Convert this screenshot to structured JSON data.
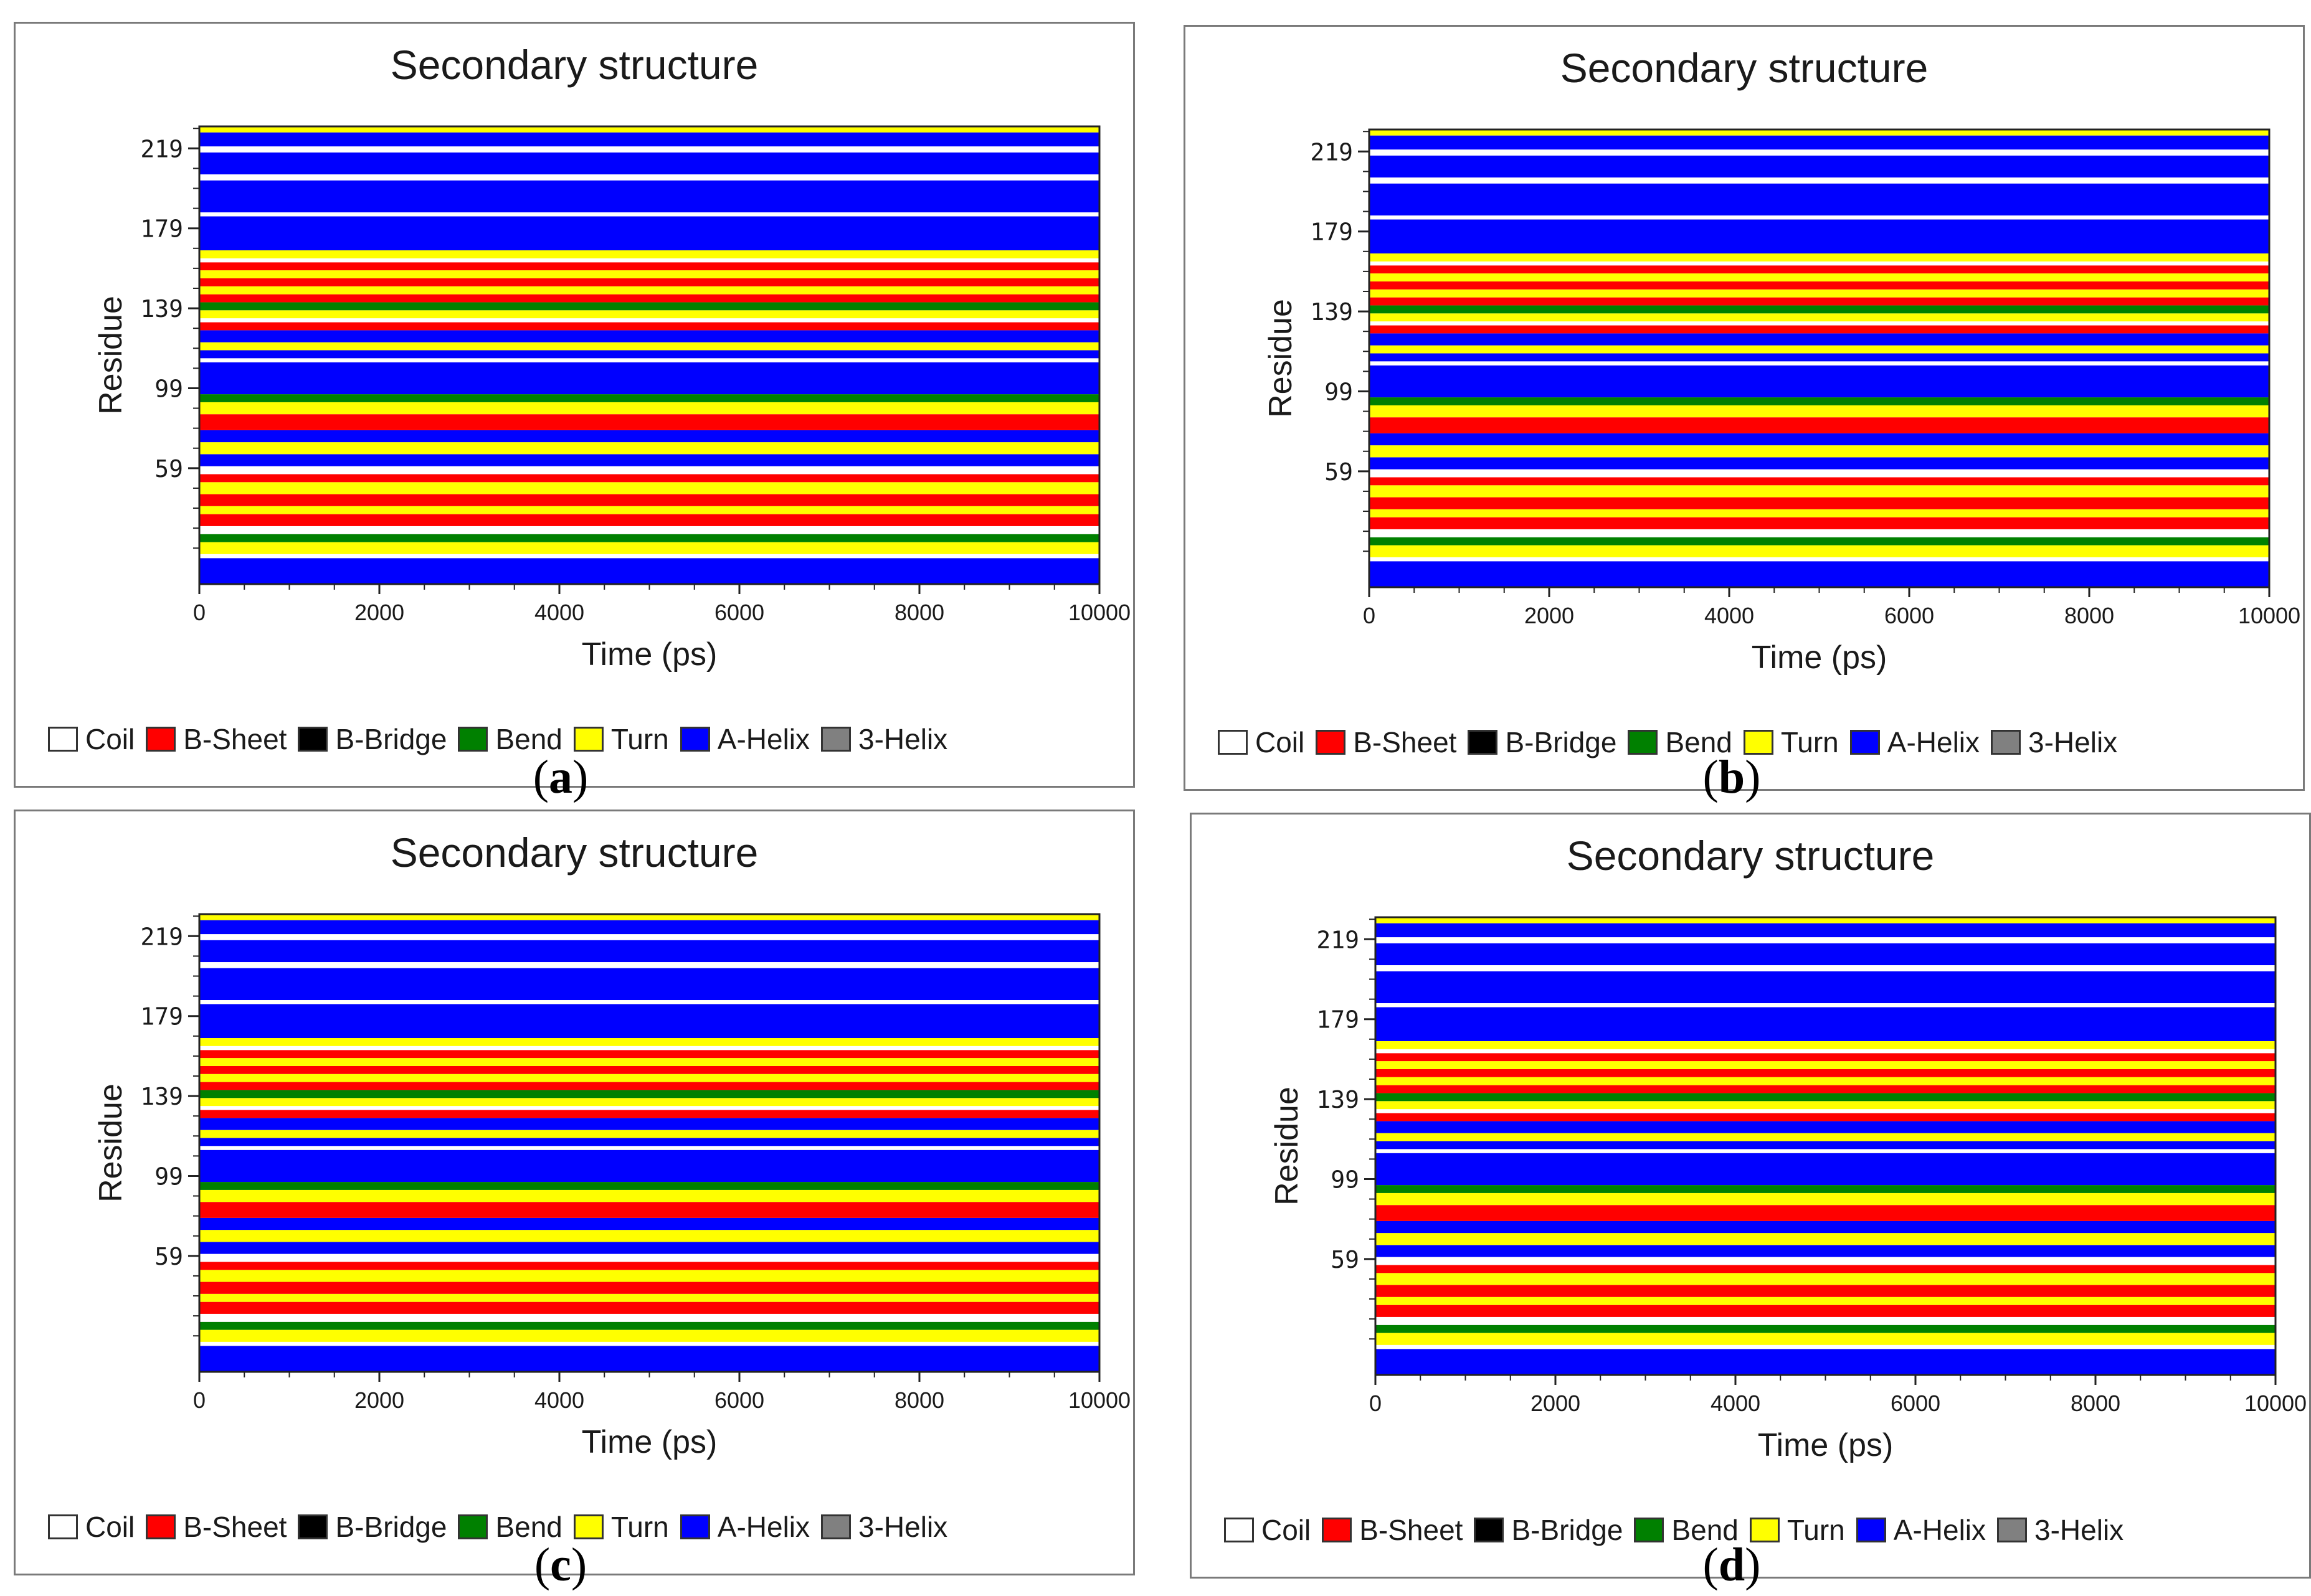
{
  "legend": [
    {
      "label": "Coil",
      "color": "#ffffff"
    },
    {
      "label": "B-Sheet",
      "color": "#ff0000"
    },
    {
      "label": "B-Bridge",
      "color": "#000000"
    },
    {
      "label": "Bend",
      "color": "#008000"
    },
    {
      "label": "Turn",
      "color": "#ffff00"
    },
    {
      "label": "A-Helix",
      "color": "#0000ff"
    },
    {
      "label": "3-Helix",
      "color": "#808080"
    }
  ],
  "panels": [
    {
      "caption_open": "(",
      "caption_letter": "a",
      "caption_close": ")"
    },
    {
      "caption_open": "(",
      "caption_letter": "b",
      "caption_close": ")"
    },
    {
      "caption_open": "(",
      "caption_letter": "c",
      "caption_close": ")"
    },
    {
      "caption_open": "(",
      "caption_letter": "d",
      "caption_close": ")"
    }
  ],
  "chart_data": [
    {
      "type": "heatmap",
      "title": "Secondary structure",
      "xlabel": "Time (ps)",
      "ylabel": "Residue",
      "xlim": [
        0,
        10000
      ],
      "ylim": [
        1,
        230
      ],
      "xticks": [
        "0",
        "2000",
        "4000",
        "6000",
        "8000",
        "10000"
      ],
      "yticks": [
        "59",
        "99",
        "139",
        "179",
        "219"
      ],
      "bands": [
        [
          1,
          14,
          "A-Helix"
        ],
        [
          14,
          16,
          "Coil"
        ],
        [
          16,
          22,
          "Turn"
        ],
        [
          22,
          26,
          "Bend"
        ],
        [
          26,
          30,
          "Coil"
        ],
        [
          30,
          36,
          "B-Sheet"
        ],
        [
          36,
          40,
          "Turn"
        ],
        [
          40,
          46,
          "B-Sheet"
        ],
        [
          46,
          52,
          "Turn"
        ],
        [
          52,
          56,
          "B-Sheet"
        ],
        [
          56,
          60,
          "Coil"
        ],
        [
          60,
          66,
          "A-Helix"
        ],
        [
          66,
          72,
          "Turn"
        ],
        [
          72,
          78,
          "A-Helix"
        ],
        [
          78,
          86,
          "B-Sheet"
        ],
        [
          86,
          92,
          "Turn"
        ],
        [
          92,
          96,
          "Bend"
        ],
        [
          96,
          112,
          "A-Helix"
        ],
        [
          112,
          114,
          "Coil"
        ],
        [
          114,
          118,
          "A-Helix"
        ],
        [
          118,
          122,
          "Turn"
        ],
        [
          122,
          128,
          "A-Helix"
        ],
        [
          128,
          132,
          "B-Sheet"
        ],
        [
          132,
          134,
          "Coil"
        ],
        [
          134,
          138,
          "Turn"
        ],
        [
          138,
          142,
          "Bend"
        ],
        [
          142,
          146,
          "B-Sheet"
        ],
        [
          146,
          150,
          "Turn"
        ],
        [
          150,
          154,
          "B-Sheet"
        ],
        [
          154,
          158,
          "Turn"
        ],
        [
          158,
          162,
          "B-Sheet"
        ],
        [
          162,
          164,
          "Coil"
        ],
        [
          164,
          168,
          "Turn"
        ],
        [
          168,
          185,
          "A-Helix"
        ],
        [
          185,
          187,
          "Coil"
        ],
        [
          187,
          203,
          "A-Helix"
        ],
        [
          203,
          206,
          "Coil"
        ],
        [
          206,
          217,
          "A-Helix"
        ],
        [
          217,
          220,
          "Coil"
        ],
        [
          220,
          227,
          "A-Helix"
        ],
        [
          227,
          230,
          "Turn"
        ]
      ]
    },
    {
      "type": "heatmap",
      "title": "Secondary structure",
      "xlabel": "Time (ps)",
      "ylabel": "Residue",
      "xlim": [
        0,
        10000
      ],
      "ylim": [
        1,
        230
      ],
      "xticks": [
        "0",
        "2000",
        "4000",
        "6000",
        "8000",
        "10000"
      ],
      "yticks": [
        "59",
        "99",
        "139",
        "179",
        "219"
      ],
      "bands": [
        [
          1,
          14,
          "A-Helix"
        ],
        [
          14,
          16,
          "Coil"
        ],
        [
          16,
          22,
          "Turn"
        ],
        [
          22,
          26,
          "Bend"
        ],
        [
          26,
          30,
          "Coil"
        ],
        [
          30,
          36,
          "B-Sheet"
        ],
        [
          36,
          40,
          "Turn"
        ],
        [
          40,
          46,
          "B-Sheet"
        ],
        [
          46,
          52,
          "Turn"
        ],
        [
          52,
          56,
          "B-Sheet"
        ],
        [
          56,
          60,
          "Coil"
        ],
        [
          60,
          66,
          "A-Helix"
        ],
        [
          66,
          72,
          "Turn"
        ],
        [
          72,
          78,
          "A-Helix"
        ],
        [
          78,
          86,
          "B-Sheet"
        ],
        [
          86,
          92,
          "Turn"
        ],
        [
          92,
          96,
          "Bend"
        ],
        [
          96,
          112,
          "A-Helix"
        ],
        [
          112,
          114,
          "Coil"
        ],
        [
          114,
          118,
          "A-Helix"
        ],
        [
          118,
          122,
          "Turn"
        ],
        [
          122,
          128,
          "A-Helix"
        ],
        [
          128,
          132,
          "B-Sheet"
        ],
        [
          132,
          134,
          "Coil"
        ],
        [
          134,
          138,
          "Turn"
        ],
        [
          138,
          142,
          "Bend"
        ],
        [
          142,
          146,
          "B-Sheet"
        ],
        [
          146,
          150,
          "Turn"
        ],
        [
          150,
          154,
          "B-Sheet"
        ],
        [
          154,
          158,
          "Turn"
        ],
        [
          158,
          162,
          "B-Sheet"
        ],
        [
          162,
          164,
          "Coil"
        ],
        [
          164,
          168,
          "Turn"
        ],
        [
          168,
          185,
          "A-Helix"
        ],
        [
          185,
          187,
          "Coil"
        ],
        [
          187,
          203,
          "A-Helix"
        ],
        [
          203,
          206,
          "Coil"
        ],
        [
          206,
          217,
          "A-Helix"
        ],
        [
          217,
          220,
          "Coil"
        ],
        [
          220,
          227,
          "A-Helix"
        ],
        [
          227,
          230,
          "Turn"
        ]
      ]
    },
    {
      "type": "heatmap",
      "title": "Secondary structure",
      "xlabel": "Time (ps)",
      "ylabel": "Residue",
      "xlim": [
        0,
        10000
      ],
      "ylim": [
        1,
        230
      ],
      "xticks": [
        "0",
        "2000",
        "4000",
        "6000",
        "8000",
        "10000"
      ],
      "yticks": [
        "59",
        "99",
        "139",
        "179",
        "219"
      ],
      "bands": [
        [
          1,
          14,
          "A-Helix"
        ],
        [
          14,
          16,
          "Coil"
        ],
        [
          16,
          22,
          "Turn"
        ],
        [
          22,
          26,
          "Bend"
        ],
        [
          26,
          30,
          "Coil"
        ],
        [
          30,
          36,
          "B-Sheet"
        ],
        [
          36,
          40,
          "Turn"
        ],
        [
          40,
          46,
          "B-Sheet"
        ],
        [
          46,
          52,
          "Turn"
        ],
        [
          52,
          56,
          "B-Sheet"
        ],
        [
          56,
          60,
          "Coil"
        ],
        [
          60,
          66,
          "A-Helix"
        ],
        [
          66,
          72,
          "Turn"
        ],
        [
          72,
          78,
          "A-Helix"
        ],
        [
          78,
          86,
          "B-Sheet"
        ],
        [
          86,
          92,
          "Turn"
        ],
        [
          92,
          96,
          "Bend"
        ],
        [
          96,
          112,
          "A-Helix"
        ],
        [
          112,
          114,
          "Coil"
        ],
        [
          114,
          118,
          "A-Helix"
        ],
        [
          118,
          122,
          "Turn"
        ],
        [
          122,
          128,
          "A-Helix"
        ],
        [
          128,
          132,
          "B-Sheet"
        ],
        [
          132,
          134,
          "Coil"
        ],
        [
          134,
          138,
          "Turn"
        ],
        [
          138,
          142,
          "Bend"
        ],
        [
          142,
          146,
          "B-Sheet"
        ],
        [
          146,
          150,
          "Turn"
        ],
        [
          150,
          154,
          "B-Sheet"
        ],
        [
          154,
          158,
          "Turn"
        ],
        [
          158,
          162,
          "B-Sheet"
        ],
        [
          162,
          164,
          "Coil"
        ],
        [
          164,
          168,
          "Turn"
        ],
        [
          168,
          185,
          "A-Helix"
        ],
        [
          185,
          187,
          "Coil"
        ],
        [
          187,
          203,
          "A-Helix"
        ],
        [
          203,
          206,
          "Coil"
        ],
        [
          206,
          217,
          "A-Helix"
        ],
        [
          217,
          220,
          "Coil"
        ],
        [
          220,
          227,
          "A-Helix"
        ],
        [
          227,
          230,
          "Turn"
        ]
      ]
    },
    {
      "type": "heatmap",
      "title": "Secondary structure",
      "xlabel": "Time (ps)",
      "ylabel": "Residue",
      "xlim": [
        0,
        10000
      ],
      "ylim": [
        1,
        230
      ],
      "xticks": [
        "0",
        "2000",
        "4000",
        "6000",
        "8000",
        "10000"
      ],
      "yticks": [
        "59",
        "99",
        "139",
        "179",
        "219"
      ],
      "bands": [
        [
          1,
          14,
          "A-Helix"
        ],
        [
          14,
          16,
          "Coil"
        ],
        [
          16,
          22,
          "Turn"
        ],
        [
          22,
          26,
          "Bend"
        ],
        [
          26,
          30,
          "Coil"
        ],
        [
          30,
          36,
          "B-Sheet"
        ],
        [
          36,
          40,
          "Turn"
        ],
        [
          40,
          46,
          "B-Sheet"
        ],
        [
          46,
          52,
          "Turn"
        ],
        [
          52,
          56,
          "B-Sheet"
        ],
        [
          56,
          60,
          "Coil"
        ],
        [
          60,
          66,
          "A-Helix"
        ],
        [
          66,
          72,
          "Turn"
        ],
        [
          72,
          78,
          "A-Helix"
        ],
        [
          78,
          86,
          "B-Sheet"
        ],
        [
          86,
          92,
          "Turn"
        ],
        [
          92,
          96,
          "Bend"
        ],
        [
          96,
          112,
          "A-Helix"
        ],
        [
          112,
          114,
          "Coil"
        ],
        [
          114,
          118,
          "A-Helix"
        ],
        [
          118,
          122,
          "Turn"
        ],
        [
          122,
          128,
          "A-Helix"
        ],
        [
          128,
          132,
          "B-Sheet"
        ],
        [
          132,
          134,
          "Coil"
        ],
        [
          134,
          138,
          "Turn"
        ],
        [
          138,
          142,
          "Bend"
        ],
        [
          142,
          146,
          "B-Sheet"
        ],
        [
          146,
          150,
          "Turn"
        ],
        [
          150,
          154,
          "B-Sheet"
        ],
        [
          154,
          158,
          "Turn"
        ],
        [
          158,
          162,
          "B-Sheet"
        ],
        [
          162,
          164,
          "Coil"
        ],
        [
          164,
          168,
          "Turn"
        ],
        [
          168,
          185,
          "A-Helix"
        ],
        [
          185,
          187,
          "Coil"
        ],
        [
          187,
          203,
          "A-Helix"
        ],
        [
          203,
          206,
          "Coil"
        ],
        [
          206,
          217,
          "A-Helix"
        ],
        [
          217,
          220,
          "Coil"
        ],
        [
          220,
          227,
          "A-Helix"
        ],
        [
          227,
          230,
          "Turn"
        ]
      ]
    }
  ]
}
